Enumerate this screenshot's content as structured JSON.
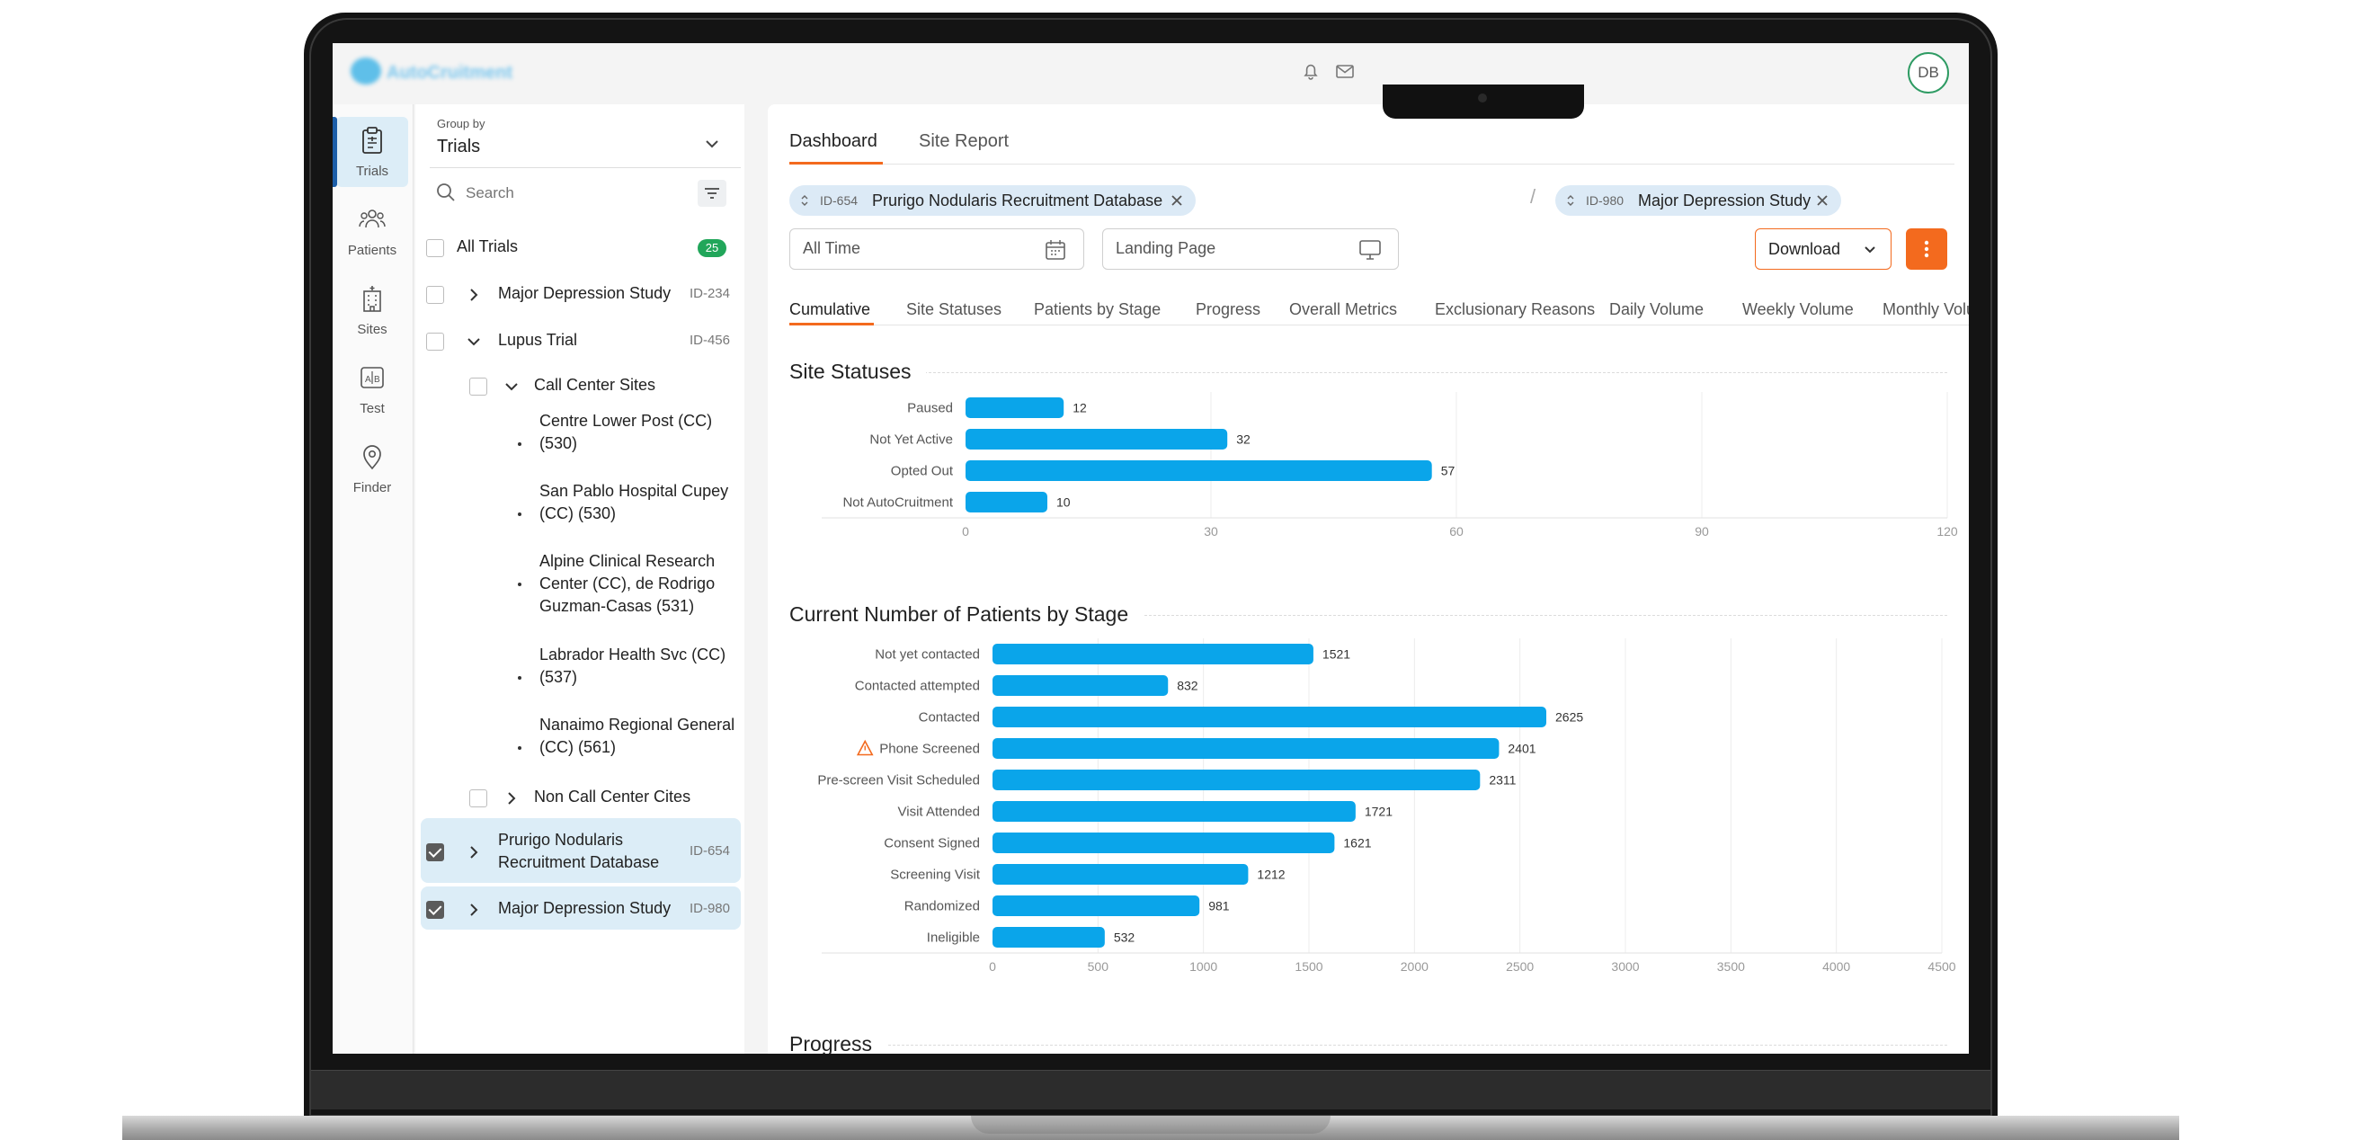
{
  "app": {
    "logo_text": "AutoCruitment",
    "avatar_initials": "DB"
  },
  "icons": {
    "bell": "bell-icon",
    "mail": "mail-icon",
    "search": "search-icon",
    "filter": "filter-icon",
    "calendar": "calendar-icon",
    "monitor": "monitor-icon",
    "more": "kebab-icon"
  },
  "colors": {
    "accent": "#f36a1e",
    "bar": "#0aa5ea",
    "badge": "#21a65a",
    "selection": "#dcedf7",
    "warning": "#f36a1e"
  },
  "nav": {
    "items": [
      {
        "label": "Trials",
        "icon": "clipboard-icon",
        "active": true
      },
      {
        "label": "Patients",
        "icon": "people-icon"
      },
      {
        "label": "Sites",
        "icon": "building-icon"
      },
      {
        "label": "Test",
        "icon": "ab-test-icon"
      },
      {
        "label": "Finder",
        "icon": "map-pin-icon"
      }
    ]
  },
  "trials_panel": {
    "group_by_label": "Group by",
    "group_by_value": "Trials",
    "search_placeholder": "Search",
    "all_trials": {
      "label": "All Trials",
      "count": "25"
    },
    "trials": [
      {
        "label": "Major Depression Study",
        "id": "ID-234",
        "expanded": false,
        "checked": false
      },
      {
        "label": "Lupus Trial",
        "id": "ID-456",
        "expanded": true,
        "checked": false
      },
      {
        "label": "Call Center Sites",
        "expanded": true,
        "checked": false
      },
      {
        "label": "Centre Lower Post (CC) (530)"
      },
      {
        "label": "San Pablo Hospital Cupey (CC) (530)"
      },
      {
        "label": "Alpine Clinical Research Center (CC), de Rodrigo Guzman-Casas (531)"
      },
      {
        "label": "Labrador Health Svc (CC) (537)"
      },
      {
        "label": "Nanaimo Regional General (CC) (561)"
      },
      {
        "label": "Non Call Center Cites",
        "expanded": false,
        "checked": false
      },
      {
        "label": "Prurigo Nodularis Recruitment Database",
        "id": "ID-654",
        "checked": true
      },
      {
        "label": "Major Depression Study",
        "id": "ID-980",
        "checked": true
      }
    ]
  },
  "main": {
    "top_tabs": [
      {
        "label": "Dashboard",
        "active": true
      },
      {
        "label": "Site Report"
      }
    ],
    "chips": [
      {
        "id": "ID-654",
        "label": "Prurigo Nodularis Recruitment Database"
      },
      {
        "id": "ID-980",
        "label": "Major Depression Study"
      }
    ],
    "chip_separator": "/",
    "date_filter": {
      "value": "All Time"
    },
    "page_filter": {
      "value": "Landing Page"
    },
    "download_label": "Download",
    "sub_tabs": [
      {
        "label": "Cumulative",
        "active": true
      },
      {
        "label": "Site Statuses"
      },
      {
        "label": "Patients by Stage"
      },
      {
        "label": "Progress"
      },
      {
        "label": "Overall Metrics"
      },
      {
        "label": "Exclusionary Reasons"
      },
      {
        "label": "Daily Volume"
      },
      {
        "label": "Weekly Volume"
      },
      {
        "label": "Monthly Volum"
      }
    ],
    "next_section_title": "Progress"
  },
  "chart_data": [
    {
      "type": "bar",
      "orientation": "horizontal",
      "title": "Site Statuses",
      "categories": [
        "Paused",
        "Not Yet Active",
        "Opted Out",
        "Not AutoCruitment"
      ],
      "values": [
        12,
        32,
        57,
        10
      ],
      "xlim": [
        0,
        120
      ],
      "xticks": [
        0,
        30,
        60,
        90,
        120
      ],
      "grid": true,
      "data_labels": true
    },
    {
      "type": "bar",
      "orientation": "horizontal",
      "title": "Current Number of Patients by Stage",
      "categories": [
        "Not yet contacted",
        "Contacted attempted",
        "Contacted",
        "Phone Screened",
        "Pre-screen Visit Scheduled",
        "Visit Attended",
        "Consent Signed",
        "Screening Visit",
        "Randomized",
        "Ineligible"
      ],
      "values": [
        1521,
        832,
        2625,
        2401,
        2311,
        1721,
        1621,
        1212,
        981,
        532
      ],
      "warning_category": "Phone Screened",
      "xlim": [
        0,
        4500
      ],
      "xticks": [
        0,
        500,
        1000,
        1500,
        2000,
        2500,
        3000,
        3500,
        4000,
        4500
      ],
      "grid": true,
      "data_labels": true
    }
  ]
}
